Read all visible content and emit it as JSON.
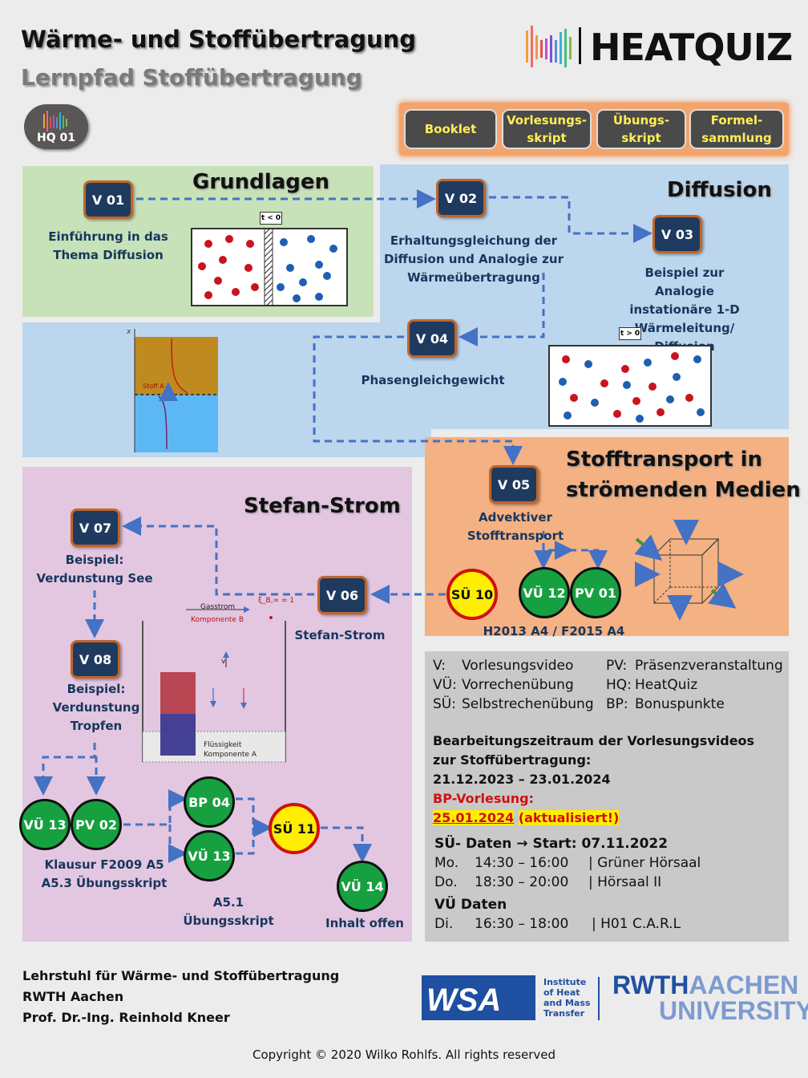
{
  "header": {
    "title": "Wärme- und Stoffübertragung",
    "subtitle": "Lernpfad Stoffübertragung",
    "brand": "HEATQUIZ",
    "hq_badge": "HQ 01"
  },
  "top_buttons": [
    {
      "label": "Booklet"
    },
    {
      "label1": "Vorlesungs-",
      "label2": "skript"
    },
    {
      "label1": "Übungs-",
      "label2": "skript"
    },
    {
      "label1": "Formel-",
      "label2": "sammlung"
    }
  ],
  "sections": {
    "grundlagen": "Grundlagen",
    "diffusion": "Diffusion",
    "stofftransport1": "Stofftransport in",
    "stofftransport2": "strömenden Medien",
    "stefan": "Stefan-Strom"
  },
  "nodes": {
    "v01": "V 01",
    "v02": "V 02",
    "v03": "V 03",
    "v04": "V 04",
    "v05": "V 05",
    "v06": "V 06",
    "v07": "V 07",
    "v08": "V 08",
    "su10": "SÜ 10",
    "vu12": "VÜ 12",
    "pv01": "PV 01",
    "vu13a": "VÜ 13",
    "pv02": "PV 02",
    "bp04": "BP 04",
    "vu13b": "VÜ 13",
    "su11": "SÜ 11",
    "vu14": "VÜ 14"
  },
  "labels": {
    "v01_1": "Einführung in das",
    "v01_2": "Thema Diffusion",
    "v02_1": "Erhaltungsgleichung der",
    "v02_2": "Diffusion und Analogie zur",
    "v02_3": "Wärmeübertragung",
    "v03_1": "Beispiel zur Analogie",
    "v03_2": "instationäre 1-D",
    "v03_3": "Wärmeleitung/",
    "v03_4": "Diffusion",
    "v04": "Phasengleichgewicht",
    "v05": "Advektiver Stofftransport",
    "v06": "Stefan-Strom",
    "v07_1": "Beispiel:",
    "v07_2": "Verdunstung See",
    "v08_1": "Beispiel:",
    "v08_2": "Verdunstung",
    "v08_3": "Tropfen",
    "h2013": "H2013 A4 / F2015 A4",
    "klausur1": "Klausur F2009 A5",
    "klausur2": "A5.3 Übungsskript",
    "a51_1": "A5.1",
    "a51_2": "Übungsskript",
    "inhalt": "Inhalt offen",
    "t_lt0": "t < 0",
    "t_gt0": "t > 0",
    "stoffa": "Stoff A",
    "gasstrom": "Gasstrom",
    "komponente_b": "Komponente B",
    "fluessig": "Flüssigkeit",
    "komponente_a": "Komponente A",
    "xi_b": "ξ_B,∞ = 1",
    "v_arrow": "v"
  },
  "legend": {
    "rows": [
      [
        "V:",
        "Vorlesungsvideo",
        "PV:",
        "Präsenzveranstaltung"
      ],
      [
        "VÜ:",
        "Vorrechenübung",
        "HQ:",
        "HeatQuiz"
      ],
      [
        "SÜ:",
        "Selbstrechenübung",
        "BP:",
        "Bonuspunkte"
      ]
    ],
    "period1": "Bearbeitungszeitraum der Vorlesungsvideos",
    "period2": "zur Stoffübertragung:",
    "period3": "21.12.2023 – 23.01.2024",
    "bp1": "BP-Vorlesung:",
    "bp_date": "25.01.2024",
    "bp_note": "(aktualisiert!)",
    "su_title": "SÜ- Daten → Start: 07.11.2022",
    "su_rows": [
      [
        "Mo.",
        "14:30 – 16:00",
        "| Grüner Hörsaal"
      ],
      [
        "Do.",
        "18:30 – 20:00",
        "| Hörsaal II"
      ]
    ],
    "vu_title": "VÜ Daten",
    "vu_rows": [
      [
        "Di.",
        "16:30 – 18:00",
        "| H01 C.A.R.L"
      ]
    ]
  },
  "footer": {
    "line1": "Lehrstuhl für Wärme- und Stoffübertragung",
    "line2": "RWTH Aachen",
    "line3": "Prof. Dr.-Ing. Reinhold Kneer",
    "wsa_1": "Institute",
    "wsa_2": "of Heat",
    "wsa_3": "and Mass",
    "wsa_4": "Transfer",
    "rwth1": "RWTH",
    "rwth2": "AACHEN",
    "rwth3": "UNIVERSITY",
    "copyright": "Copyright © 2020 Wilko Rohlfs. All rights reserved"
  },
  "colors": {
    "green_region": "#c7e2b8",
    "blue_region": "#bcd6ee",
    "orange_region": "#f4b183",
    "purple_region": "#e3c6e0",
    "gray_region": "#c9c9c9",
    "node": "#1f3a5f",
    "arrow": "#4472c4"
  }
}
